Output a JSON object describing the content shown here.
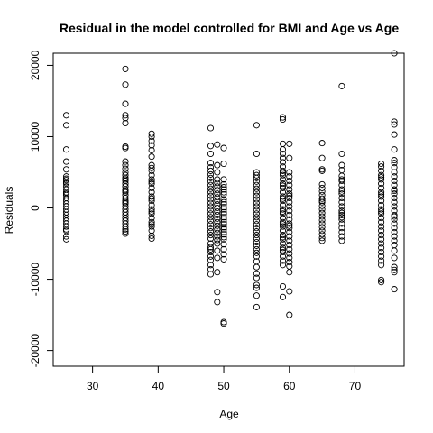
{
  "chart_data": {
    "type": "scatter",
    "title": "Residual in the model controlled for BMI and Age vs Age",
    "xlabel": "Age",
    "ylabel": "Residuals",
    "xlim": [
      24.0,
      77.5
    ],
    "ylim": [
      -22200,
      21700
    ],
    "x_ticks": [
      30,
      40,
      50,
      60,
      70
    ],
    "x_tick_labels": [
      "30",
      "40",
      "50",
      "60",
      "70"
    ],
    "y_ticks": [
      -20000,
      -10000,
      0,
      10000,
      20000
    ],
    "y_tick_labels": [
      "-20000",
      "-10000",
      "0",
      "10000",
      "20000"
    ],
    "grid": false,
    "legend": "none",
    "marker": "open-circle",
    "series": [
      {
        "x": [
          26,
          26,
          26,
          26,
          26,
          26,
          26,
          26,
          26,
          26,
          26,
          26,
          26,
          26,
          26,
          26,
          26,
          26,
          26,
          26,
          26,
          26,
          26,
          26,
          26,
          26,
          26,
          26,
          26,
          26,
          35,
          35,
          35,
          35,
          35,
          35,
          35,
          35,
          35,
          35,
          35,
          35,
          35,
          35,
          35,
          35,
          35,
          35,
          35,
          35,
          35,
          35,
          35,
          35,
          35,
          35,
          35,
          35,
          35,
          35,
          35,
          35,
          35,
          35,
          35,
          35,
          35,
          39,
          39,
          39,
          39,
          39,
          39,
          39,
          39,
          39,
          39,
          39,
          39,
          39,
          39,
          39,
          39,
          39,
          39,
          39,
          39,
          39,
          39,
          39,
          39,
          39,
          39,
          39,
          39,
          39,
          48,
          48,
          48,
          48,
          48,
          48,
          48,
          48,
          48,
          48,
          48,
          48,
          48,
          48,
          48,
          48,
          48,
          48,
          48,
          48,
          48,
          48,
          48,
          48,
          48,
          48,
          48,
          48,
          48,
          48,
          48,
          48,
          48,
          48,
          49,
          49,
          49,
          49,
          49,
          49,
          49,
          49,
          49,
          49,
          49,
          49,
          49,
          49,
          49,
          49,
          49,
          49,
          49,
          49,
          49,
          49,
          49,
          49,
          49,
          49,
          49,
          50,
          50,
          50,
          50,
          50,
          50,
          50,
          50,
          50,
          50,
          50,
          50,
          50,
          50,
          50,
          50,
          50,
          50,
          50,
          50,
          50,
          50,
          50,
          50,
          50,
          50,
          50,
          50,
          50,
          50,
          50,
          55,
          55,
          55,
          55,
          55,
          55,
          55,
          55,
          55,
          55,
          55,
          55,
          55,
          55,
          55,
          55,
          55,
          55,
          55,
          55,
          55,
          55,
          55,
          55,
          55,
          55,
          55,
          55,
          55,
          55,
          55,
          55,
          55,
          55,
          55,
          59,
          59,
          59,
          59,
          59,
          59,
          59,
          59,
          59,
          59,
          59,
          59,
          59,
          59,
          59,
          59,
          59,
          59,
          59,
          59,
          59,
          59,
          59,
          59,
          59,
          59,
          59,
          59,
          59,
          59,
          59,
          59,
          59,
          59,
          59,
          59,
          59,
          59,
          59,
          59,
          60,
          60,
          60,
          60,
          60,
          60,
          60,
          60,
          60,
          60,
          60,
          60,
          60,
          60,
          60,
          60,
          60,
          60,
          60,
          60,
          60,
          60,
          60,
          60,
          60,
          60,
          60,
          60,
          60,
          60,
          65,
          65,
          65,
          65,
          65,
          65,
          65,
          65,
          65,
          65,
          65,
          65,
          65,
          65,
          65,
          65,
          65,
          65,
          65,
          65,
          65,
          65,
          68,
          68,
          68,
          68,
          68,
          68,
          68,
          68,
          68,
          68,
          68,
          68,
          68,
          68,
          68,
          68,
          68,
          68,
          68,
          68,
          68,
          68,
          68,
          68,
          74,
          74,
          74,
          74,
          74,
          74,
          74,
          74,
          74,
          74,
          74,
          74,
          74,
          74,
          74,
          74,
          74,
          74,
          74,
          74,
          74,
          74,
          74,
          74,
          74,
          74,
          74,
          74,
          74,
          74,
          76,
          76,
          76,
          76,
          76,
          76,
          76,
          76,
          76,
          76,
          76,
          76,
          76,
          76,
          76,
          76,
          76,
          76,
          76,
          76,
          76,
          76,
          76,
          76,
          76,
          76,
          76,
          76,
          76,
          76,
          76,
          76,
          76,
          76
        ],
        "y": [
          13000,
          11600,
          8200,
          6500,
          5400,
          4400,
          3900,
          3400,
          3000,
          2600,
          2200,
          1800,
          1400,
          1000,
          600,
          200,
          -200,
          -600,
          -1000,
          -1400,
          -1800,
          -2200,
          -2600,
          -3000,
          -4000,
          -4400,
          4100,
          3600,
          -3200,
          2000,
          19500,
          17300,
          14600,
          13000,
          12600,
          11900,
          8600,
          8400,
          6500,
          6000,
          5500,
          5000,
          4600,
          4200,
          3800,
          3400,
          3000,
          2600,
          2200,
          1800,
          1400,
          1000,
          600,
          200,
          -200,
          -600,
          -1000,
          -1400,
          -1800,
          -2200,
          -2600,
          -3000,
          -3600,
          -3300,
          4000,
          2400,
          800,
          10400,
          10000,
          9400,
          8800,
          8100,
          7200,
          6000,
          5200,
          4600,
          4000,
          3400,
          2800,
          2200,
          1600,
          1000,
          400,
          -200,
          -800,
          -1400,
          -2000,
          -2600,
          -3200,
          -3900,
          -4300,
          5600,
          3700,
          1300,
          -500,
          -2300,
          11200,
          8700,
          7600,
          6300,
          5700,
          5200,
          4700,
          4200,
          3700,
          3200,
          2700,
          2200,
          1700,
          1200,
          700,
          200,
          -300,
          -800,
          -1300,
          -1800,
          -2300,
          -2800,
          -3300,
          -3800,
          -4300,
          -5000,
          -5500,
          -6200,
          -6800,
          -7300,
          -8000,
          -8600,
          -9300,
          -5800,
          8900,
          6000,
          5000,
          4000,
          3000,
          2000,
          1000,
          0,
          -1000,
          -2000,
          -3000,
          -4000,
          -5000,
          -6000,
          -7000,
          -9000,
          -11800,
          -13200,
          3500,
          2500,
          1500,
          500,
          -500,
          -1500,
          -2500,
          -3500,
          -4500,
          8400,
          6200,
          4000,
          3300,
          2600,
          1900,
          1200,
          500,
          -200,
          -900,
          -1600,
          -2300,
          -3000,
          -3700,
          -4400,
          -5100,
          -5800,
          -6500,
          -7200,
          -16000,
          -16200,
          2900,
          2200,
          800,
          100,
          -600,
          -1300,
          -2000,
          -2700,
          -3400,
          -4100,
          11600,
          7600,
          5000,
          4600,
          4200,
          3700,
          3200,
          2700,
          2200,
          1700,
          1200,
          700,
          200,
          -300,
          -800,
          -1300,
          -1800,
          -2300,
          -2800,
          -3300,
          -3800,
          -4300,
          -4800,
          -5300,
          -5800,
          -6300,
          -6800,
          -7500,
          -8300,
          -9800,
          -11200,
          -12300,
          -13900,
          -10800,
          -9200,
          12700,
          12400,
          9000,
          8200,
          7600,
          7000,
          6400,
          5800,
          5200,
          4600,
          4000,
          3400,
          2800,
          2200,
          1600,
          1000,
          400,
          -200,
          -800,
          -1400,
          -2000,
          -2600,
          -3200,
          -3800,
          -4400,
          -5000,
          -5600,
          -6200,
          -6800,
          -7400,
          -8000,
          -11000,
          -12500,
          4900,
          3100,
          1300,
          -500,
          -2300,
          -4100,
          -5900,
          9000,
          7000,
          5000,
          4400,
          3800,
          3200,
          2600,
          2000,
          1400,
          800,
          200,
          -400,
          -1000,
          -1600,
          -2200,
          -2800,
          -3400,
          -4000,
          -4600,
          -5200,
          -5800,
          -6400,
          -7000,
          -7600,
          -8200,
          -11700,
          -15000,
          -9000,
          1700,
          -2500,
          9100,
          7000,
          5400,
          3300,
          2800,
          2300,
          1800,
          1300,
          800,
          300,
          -200,
          -700,
          -1200,
          -1700,
          -2200,
          -2700,
          -3200,
          -3700,
          -4200,
          -4600,
          5200,
          1000,
          17100,
          7600,
          6000,
          5300,
          4500,
          3800,
          3200,
          2600,
          2000,
          1400,
          800,
          200,
          -400,
          -1000,
          -1600,
          -2200,
          -2800,
          -3400,
          -4000,
          -4600,
          4000,
          2300,
          -1300,
          -700,
          6200,
          5800,
          5200,
          4600,
          4000,
          3400,
          2800,
          2200,
          1600,
          1000,
          400,
          -200,
          -800,
          -1400,
          -2000,
          -2600,
          -3200,
          -3800,
          -4400,
          -5000,
          -5600,
          -6200,
          -6800,
          -7400,
          -8000,
          -10100,
          -10400,
          4300,
          1900,
          -500,
          21700,
          12100,
          11700,
          10300,
          8200,
          6300,
          5700,
          5000,
          4400,
          3800,
          3200,
          2600,
          2000,
          1400,
          800,
          200,
          -400,
          -1000,
          -1600,
          -2200,
          -2800,
          -3400,
          -4000,
          -4600,
          -5200,
          -6000,
          -7000,
          -8300,
          -8700,
          -9000,
          -11400,
          -1200,
          2400,
          6700
        ]
      }
    ]
  }
}
